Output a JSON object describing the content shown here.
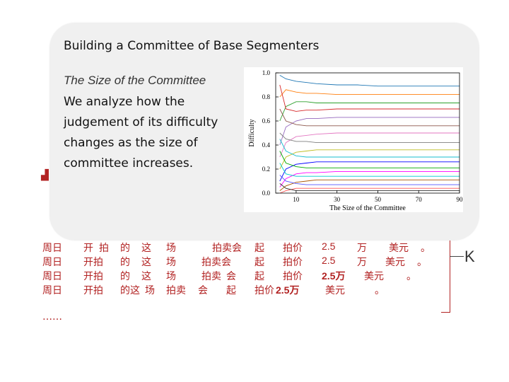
{
  "popup": {
    "title": "Building a Committee of Base Segmenters",
    "subtitle": "The Size of the Committee",
    "body_lines": [
      "We analyze how the",
      "judgement of its difficulty",
      "changes  as the size of",
      "committee increases."
    ]
  },
  "segmentations": [
    [
      "周日",
      "开",
      "拍",
      "的",
      "这",
      "场",
      "拍卖会",
      "起",
      "拍价",
      "2.5",
      "万",
      "美元",
      "。"
    ],
    [
      "周日",
      "开拍",
      "的",
      "这",
      "场",
      "拍卖会",
      "起",
      "拍价",
      "2.5",
      "万",
      "美元",
      "。"
    ],
    [
      "周日",
      "开拍",
      "的",
      "这",
      "场",
      "拍卖",
      "会",
      "起",
      "拍价",
      "2.5万",
      "美元",
      "。"
    ],
    [
      "周日",
      "开拍",
      "的这",
      "场",
      "拍卖",
      "会",
      "起",
      "拍价",
      "2.5万",
      "美元",
      "。"
    ]
  ],
  "ellipsis": "……",
  "k_label": "K",
  "chart_data": {
    "type": "line",
    "xlabel": "The Size of the Committee",
    "ylabel": "Difficulty",
    "xlim": [
      0,
      90
    ],
    "ylim": [
      0,
      1.0
    ],
    "x_ticks": [
      "10",
      "30",
      "50",
      "70",
      "90"
    ],
    "y_ticks": [
      "0.0",
      "0.2",
      "0.4",
      "0.6",
      "0.8",
      "1.0"
    ],
    "x": [
      2,
      5,
      10,
      15,
      20,
      30,
      40,
      50,
      60,
      70,
      80,
      90
    ],
    "series": [
      {
        "values": [
          0.98,
          0.95,
          0.93,
          0.92,
          0.91,
          0.9,
          0.9,
          0.89,
          0.89,
          0.89,
          0.89,
          0.89
        ]
      },
      {
        "values": [
          0.8,
          0.86,
          0.84,
          0.83,
          0.83,
          0.82,
          0.82,
          0.82,
          0.82,
          0.82,
          0.82,
          0.82
        ]
      },
      {
        "values": [
          0.6,
          0.72,
          0.76,
          0.76,
          0.75,
          0.75,
          0.75,
          0.75,
          0.75,
          0.75,
          0.75,
          0.75
        ]
      },
      {
        "values": [
          0.9,
          0.7,
          0.68,
          0.69,
          0.69,
          0.7,
          0.7,
          0.7,
          0.7,
          0.7,
          0.7,
          0.7
        ]
      },
      {
        "values": [
          0.4,
          0.55,
          0.6,
          0.62,
          0.62,
          0.63,
          0.63,
          0.63,
          0.63,
          0.63,
          0.63,
          0.63
        ]
      },
      {
        "values": [
          0.7,
          0.6,
          0.57,
          0.56,
          0.56,
          0.56,
          0.56,
          0.56,
          0.56,
          0.56,
          0.56,
          0.56
        ]
      },
      {
        "values": [
          0.3,
          0.42,
          0.47,
          0.48,
          0.49,
          0.5,
          0.5,
          0.5,
          0.5,
          0.5,
          0.5,
          0.5
        ]
      },
      {
        "values": [
          0.5,
          0.45,
          0.43,
          0.43,
          0.42,
          0.42,
          0.42,
          0.42,
          0.42,
          0.42,
          0.42,
          0.42
        ]
      },
      {
        "values": [
          0.2,
          0.3,
          0.34,
          0.35,
          0.36,
          0.36,
          0.36,
          0.36,
          0.36,
          0.36,
          0.36,
          0.36
        ]
      },
      {
        "values": [
          0.45,
          0.35,
          0.31,
          0.3,
          0.3,
          0.3,
          0.3,
          0.3,
          0.3,
          0.3,
          0.3,
          0.3
        ]
      },
      {
        "values": [
          0.1,
          0.2,
          0.24,
          0.25,
          0.26,
          0.26,
          0.26,
          0.26,
          0.26,
          0.26,
          0.26,
          0.26
        ]
      },
      {
        "values": [
          0.35,
          0.25,
          0.22,
          0.21,
          0.21,
          0.21,
          0.21,
          0.21,
          0.21,
          0.21,
          0.21,
          0.21
        ]
      },
      {
        "values": [
          0.05,
          0.12,
          0.16,
          0.17,
          0.17,
          0.18,
          0.18,
          0.18,
          0.18,
          0.18,
          0.18,
          0.18
        ]
      },
      {
        "values": [
          0.25,
          0.16,
          0.14,
          0.14,
          0.14,
          0.14,
          0.14,
          0.14,
          0.14,
          0.14,
          0.14,
          0.14
        ]
      },
      {
        "values": [
          0.02,
          0.06,
          0.09,
          0.1,
          0.11,
          0.11,
          0.11,
          0.11,
          0.11,
          0.11,
          0.11,
          0.11
        ]
      },
      {
        "values": [
          0.15,
          0.1,
          0.08,
          0.07,
          0.07,
          0.07,
          0.07,
          0.07,
          0.07,
          0.07,
          0.07,
          0.07
        ]
      },
      {
        "values": [
          0.0,
          0.02,
          0.04,
          0.04,
          0.04,
          0.04,
          0.04,
          0.04,
          0.04,
          0.04,
          0.04,
          0.04
        ]
      },
      {
        "values": [
          0.08,
          0.04,
          0.02,
          0.02,
          0.02,
          0.02,
          0.02,
          0.02,
          0.02,
          0.02,
          0.02,
          0.02
        ]
      }
    ],
    "colors": [
      "#1f77b4",
      "#ff7f0e",
      "#2ca02c",
      "#d62728",
      "#9467bd",
      "#8c564b",
      "#e377c2",
      "#7f7f7f",
      "#bcbd22",
      "#17becf",
      "#0000ff",
      "#00aa00",
      "#ff00ff",
      "#00cccc",
      "#aa5500",
      "#5555ff",
      "#ff5555",
      "#333333"
    ]
  }
}
